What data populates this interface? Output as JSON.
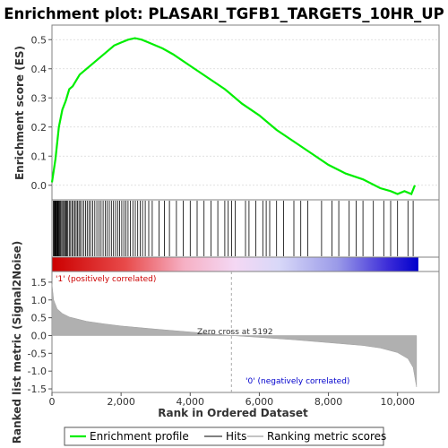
{
  "title": "Enrichment plot: PLASARI_TGFB1_TARGETS_10HR_UP",
  "top_panel": {
    "ylabel": "Enrichment score (ES)",
    "yticks": [
      "0.5",
      "0.4",
      "0.3",
      "0.2",
      "0.1",
      "0.0"
    ]
  },
  "bottom_panel": {
    "ylabel": "Ranked list metric (Signal2Noise)",
    "yticks": [
      "1.5",
      "1.0",
      "0.5",
      "0.0",
      "-0.5",
      "-1.0",
      "-1.5"
    ],
    "xlabel": "Rank in Ordered Dataset",
    "xticks": [
      "0",
      "2,000",
      "4,000",
      "6,000",
      "8,000",
      "10,000"
    ],
    "zero_cross_label": "Zero cross at 5192",
    "positive_label": "'1' (positively correlated)",
    "negative_label": "'0' (negatively correlated)"
  },
  "legend": {
    "items": [
      "Enrichment profile",
      "Hits",
      "Ranking metric scores"
    ]
  },
  "colors": {
    "profile": "#00ee00",
    "hits": "#000000",
    "metric": "#b0b0b0",
    "positive": "#cc0000",
    "negative": "#0000cc",
    "frame": "#808080"
  },
  "chart_data": {
    "type": "line",
    "n_genes": 10600,
    "zero_cross": 5192,
    "es_ylim": [
      -0.05,
      0.55
    ],
    "metric_ylim": [
      -1.6,
      1.8
    ],
    "enrichment_profile": {
      "x": [
        0,
        100,
        200,
        300,
        400,
        500,
        600,
        700,
        800,
        1000,
        1200,
        1400,
        1600,
        1800,
        2000,
        2200,
        2400,
        2600,
        2800,
        3000,
        3200,
        3500,
        4000,
        4500,
        5000,
        5500,
        6000,
        6500,
        7000,
        7500,
        8000,
        8500,
        9000,
        9500,
        9800,
        10000,
        10200,
        10400,
        10500
      ],
      "y": [
        0.01,
        0.09,
        0.2,
        0.26,
        0.29,
        0.33,
        0.34,
        0.36,
        0.38,
        0.4,
        0.42,
        0.44,
        0.46,
        0.48,
        0.49,
        0.5,
        0.505,
        0.5,
        0.49,
        0.48,
        0.47,
        0.45,
        0.41,
        0.37,
        0.33,
        0.28,
        0.24,
        0.19,
        0.15,
        0.11,
        0.07,
        0.04,
        0.02,
        -0.01,
        -0.02,
        -0.03,
        -0.02,
        -0.03,
        0.0
      ]
    },
    "hits": [
      40,
      60,
      80,
      100,
      120,
      140,
      160,
      180,
      200,
      220,
      250,
      280,
      310,
      340,
      370,
      400,
      430,
      460,
      500,
      540,
      580,
      620,
      660,
      700,
      740,
      780,
      820,
      870,
      920,
      970,
      1020,
      1070,
      1120,
      1180,
      1240,
      1300,
      1360,
      1420,
      1480,
      1540,
      1600,
      1660,
      1720,
      1780,
      1840,
      1900,
      1960,
      2020,
      2080,
      2140,
      2200,
      2270,
      2340,
      2410,
      2480,
      2550,
      2620,
      2700,
      2800,
      2900,
      3100,
      3250,
      3400,
      3600,
      3800,
      4000,
      4200,
      4400,
      4600,
      4800,
      5000,
      5100,
      5200,
      5300,
      5600,
      5700,
      5900,
      6100,
      6200,
      6300,
      6500,
      6700,
      7000,
      7200,
      7400,
      7800,
      8100,
      8300,
      8600,
      8800,
      9000,
      9300,
      9600,
      9800,
      10000,
      10300,
      10450
    ],
    "metric_profile": {
      "x": [
        0,
        50,
        150,
        300,
        500,
        1000,
        1500,
        2000,
        3000,
        4000,
        5192,
        6000,
        7000,
        8000,
        9000,
        9500,
        10000,
        10300,
        10450,
        10550
      ],
      "y": [
        1.45,
        1.0,
        0.75,
        0.62,
        0.52,
        0.4,
        0.33,
        0.27,
        0.18,
        0.1,
        0.0,
        -0.05,
        -0.12,
        -0.2,
        -0.28,
        -0.35,
        -0.48,
        -0.65,
        -0.9,
        -1.45
      ]
    }
  }
}
